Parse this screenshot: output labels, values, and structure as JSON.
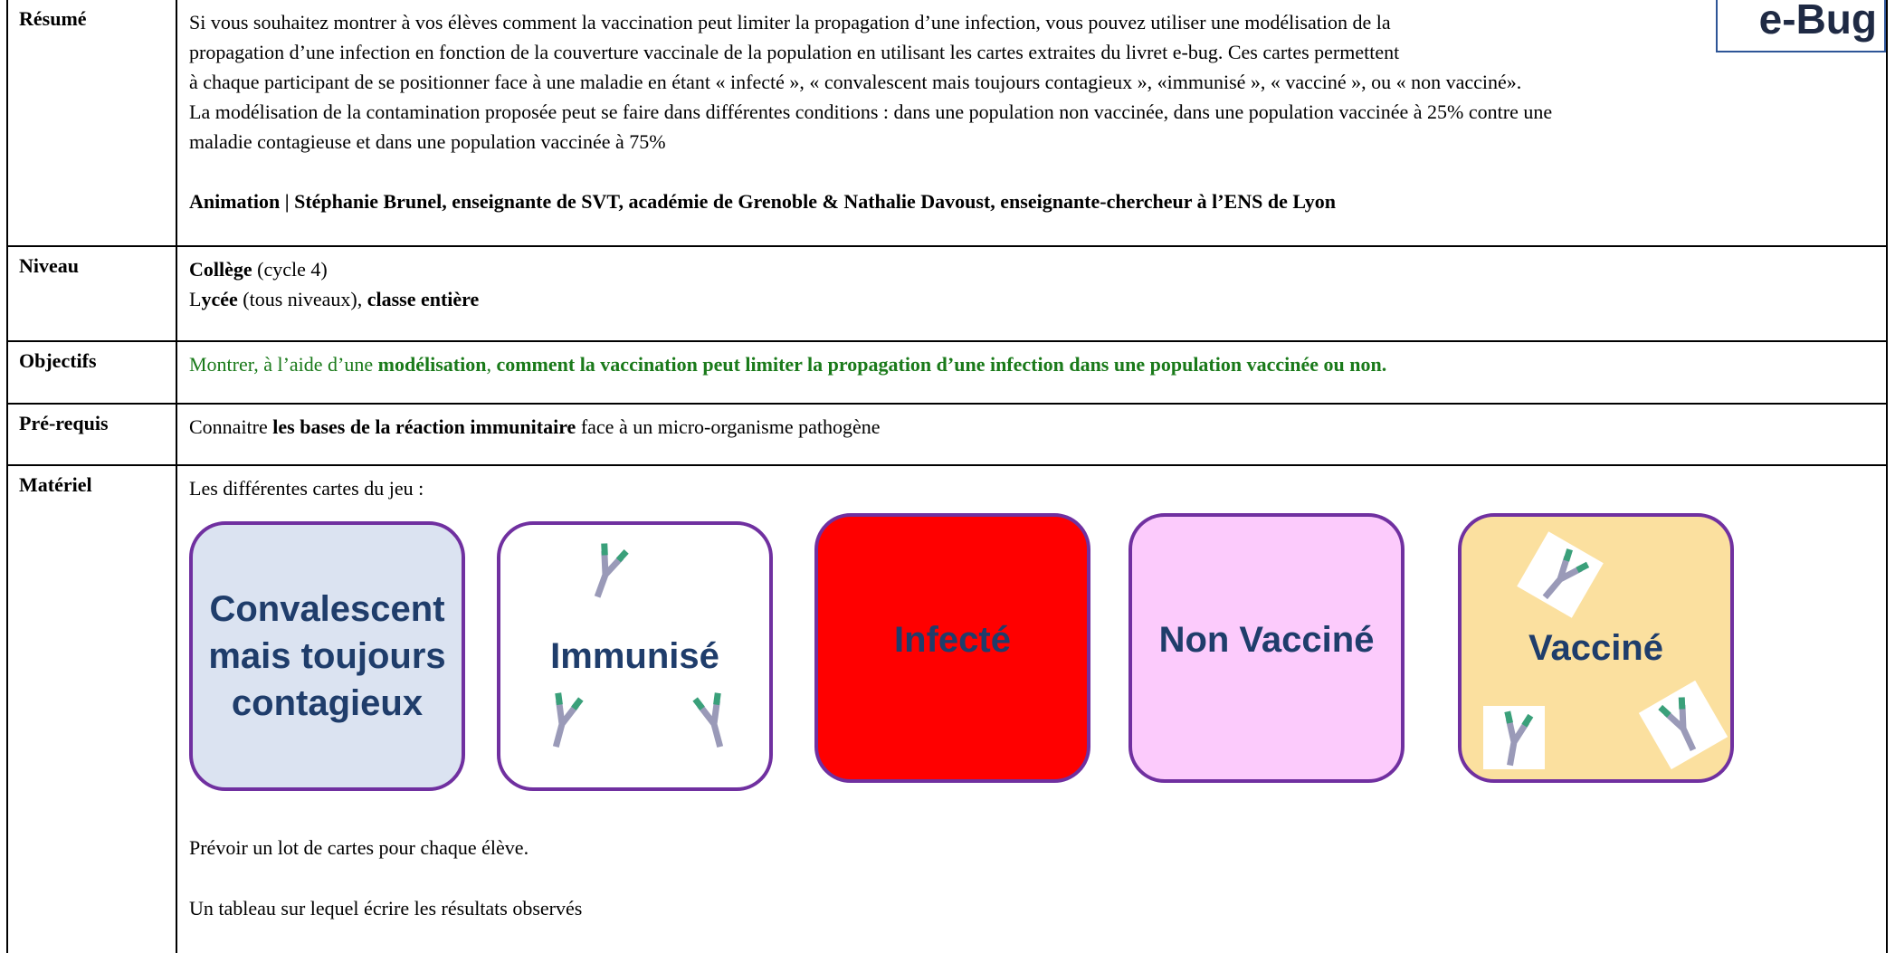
{
  "logo": "e-Bug",
  "resume": {
    "label": "Résumé",
    "lines": [
      "Si vous souhaitez montrer à vos élèves comment la vaccination peut limiter la propagation d’une infection, vous pouvez utiliser une modélisation de la",
      "propagation d’une infection en fonction de la couverture vaccinale de la population en utilisant les cartes extraites du livret e-bug. Ces cartes permettent",
      "à chaque participant de se positionner face à une maladie en étant « infecté », « convalescent mais toujours contagieux »,  «immunisé », « vacciné », ou « non vacciné».",
      "La modélisation de la contamination proposée peut se faire dans différentes conditions : dans une population non vaccinée, dans une population vaccinée à 25% contre une",
      "maladie contagieuse et dans une population vaccinée à 75%"
    ],
    "animation": "Animation | Stéphanie Brunel, enseignante de SVT, académie de Grenoble & Nathalie Davoust, enseignante-chercheur à l’ENS de Lyon"
  },
  "niveau": {
    "label": "Niveau",
    "lines": [
      [
        "Collège",
        "(cycle 4)"
      ],
      [
        "L",
        "ycée",
        "(tous niveaux),",
        "classe entière"
      ]
    ]
  },
  "objectifs": {
    "label": "Objectifs",
    "segments": [
      "Montrer, à l’aide d’une",
      "modélisation",
      ",",
      "comment la vaccination peut limiter la propagation d’une infection dans une population vaccinée ou non."
    ]
  },
  "prerequis": {
    "label": "Pré-requis",
    "segments": [
      "Connaitre",
      "les bases de la réaction immunitaire",
      "face à un micro-organisme pathogène"
    ]
  },
  "materiel": {
    "label": "Matériel",
    "intro": "Les différentes cartes du jeu :",
    "cards": [
      "Convalescent mais toujours contagieux",
      "Immunisé",
      "Infecté",
      "Non Vacciné",
      "Vacciné"
    ],
    "notes": [
      "Prévoir un lot de cartes pour chaque élève.",
      "Un tableau sur lequel écrire les résultats observés"
    ]
  }
}
